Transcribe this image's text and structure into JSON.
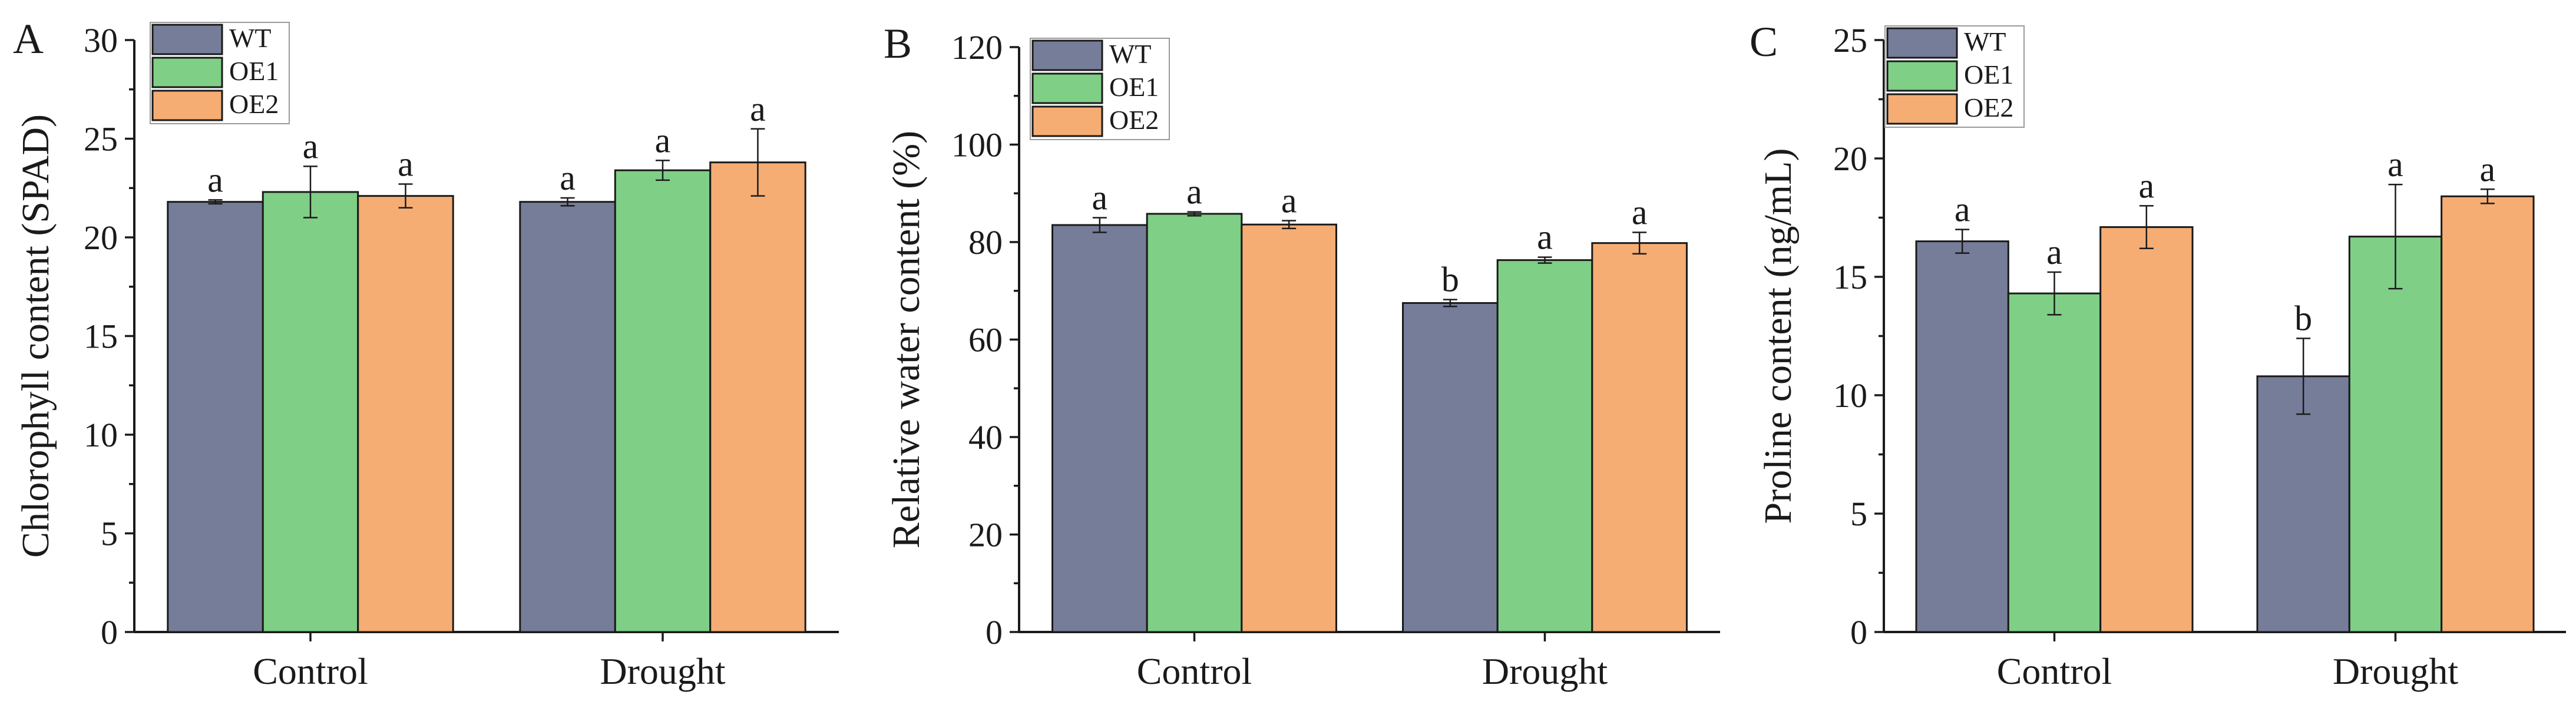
{
  "colors": {
    "WT": "#767d99",
    "OE1": "#7fcf86",
    "OE2": "#f5ad74"
  },
  "chart_data": [
    {
      "panel": "A",
      "type": "bar",
      "ylabel": "Chlorophyll content (SPAD)",
      "ylim": [
        0,
        30
      ],
      "yticks": [
        0,
        5,
        10,
        15,
        20,
        25,
        30
      ],
      "categories": [
        "Control",
        "Drought"
      ],
      "legend": [
        "WT",
        "OE1",
        "OE2"
      ],
      "legend_position": "top-left",
      "series": [
        {
          "name": "WT",
          "values": [
            21.8,
            21.8
          ],
          "errors": [
            0.1,
            0.2
          ],
          "labels": [
            "a",
            "a"
          ]
        },
        {
          "name": "OE1",
          "values": [
            22.3,
            23.4
          ],
          "errors": [
            1.3,
            0.5
          ],
          "labels": [
            "a",
            "a"
          ]
        },
        {
          "name": "OE2",
          "values": [
            22.1,
            23.8
          ],
          "errors": [
            0.6,
            1.7
          ],
          "labels": [
            "a",
            "a"
          ]
        }
      ]
    },
    {
      "panel": "B",
      "type": "bar",
      "ylabel": "Relative water content (%)",
      "ylim": [
        0,
        120
      ],
      "yticks": [
        0,
        20,
        40,
        60,
        80,
        100,
        120
      ],
      "categories": [
        "Control",
        "Drought"
      ],
      "legend": [
        "WT",
        "OE1",
        "OE2"
      ],
      "legend_position": "top-left",
      "series": [
        {
          "name": "WT",
          "values": [
            83.5,
            67.5
          ],
          "errors": [
            1.5,
            0.7
          ],
          "labels": [
            "a",
            "b"
          ]
        },
        {
          "name": "OE1",
          "values": [
            85.8,
            76.3
          ],
          "errors": [
            0.4,
            0.6
          ],
          "labels": [
            "a",
            "a"
          ]
        },
        {
          "name": "OE2",
          "values": [
            83.6,
            79.8
          ],
          "errors": [
            0.8,
            2.2
          ],
          "labels": [
            "a",
            "a"
          ]
        }
      ]
    },
    {
      "panel": "C",
      "type": "bar",
      "ylabel": "Proline content (ng/mL)",
      "ylim": [
        0,
        25
      ],
      "yticks": [
        0,
        5,
        10,
        15,
        20,
        25
      ],
      "categories": [
        "Control",
        "Drought"
      ],
      "legend": [
        "WT",
        "OE1",
        "OE2"
      ],
      "legend_position": "top-left",
      "series": [
        {
          "name": "WT",
          "values": [
            16.5,
            10.8
          ],
          "errors": [
            0.5,
            1.6
          ],
          "labels": [
            "a",
            "b"
          ]
        },
        {
          "name": "OE1",
          "values": [
            14.3,
            16.7
          ],
          "errors": [
            0.9,
            2.2
          ],
          "labels": [
            "a",
            "a"
          ]
        },
        {
          "name": "OE2",
          "values": [
            17.1,
            18.4
          ],
          "errors": [
            0.9,
            0.3
          ],
          "labels": [
            "a",
            "a"
          ]
        }
      ]
    }
  ]
}
